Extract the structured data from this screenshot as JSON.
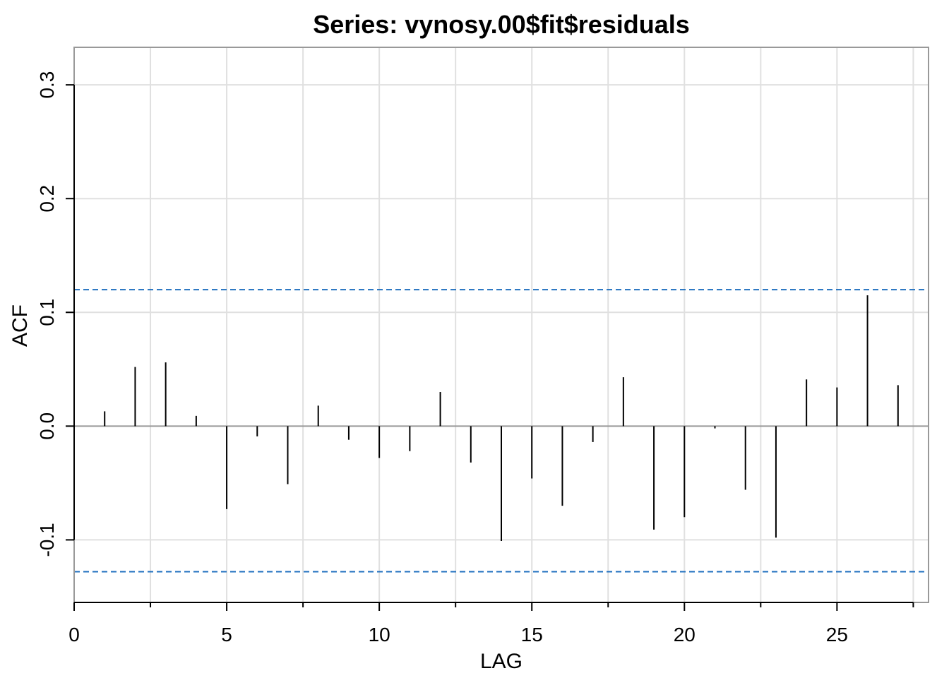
{
  "chart_data": {
    "type": "bar",
    "title": "Series:  vynosy.00$fit$residuals",
    "xlabel": "LAG",
    "ylabel": "ACF",
    "xlim": [
      0,
      28
    ],
    "ylim": [
      -0.155,
      0.333
    ],
    "x_ticks": [
      0,
      5,
      10,
      15,
      20,
      25
    ],
    "x_tick_labels": [
      "0",
      "5",
      "10",
      "15",
      "20",
      "25"
    ],
    "x_minor_ticks": [
      2.5,
      7.5,
      12.5,
      17.5,
      22.5,
      27.5
    ],
    "y_ticks": [
      -0.1,
      0.0,
      0.1,
      0.2,
      0.3
    ],
    "y_tick_labels": [
      "-0.1",
      "0.0",
      "0.1",
      "0.2",
      "0.3"
    ],
    "grid": true,
    "lags": [
      1,
      2,
      3,
      4,
      5,
      6,
      7,
      8,
      9,
      10,
      11,
      12,
      13,
      14,
      15,
      16,
      17,
      18,
      19,
      20,
      21,
      22,
      23,
      24,
      25,
      26,
      27
    ],
    "values": [
      0.013,
      0.052,
      0.056,
      0.009,
      -0.073,
      -0.009,
      -0.051,
      0.018,
      -0.012,
      -0.028,
      -0.022,
      0.03,
      -0.032,
      -0.101,
      -0.046,
      -0.07,
      -0.014,
      0.043,
      -0.091,
      -0.08,
      -0.002,
      -0.056,
      -0.098,
      0.041,
      0.034,
      0.115,
      0.036
    ],
    "confidence_bounds": [
      0.12,
      -0.128
    ],
    "colors": {
      "bars": "#000000",
      "confidence": "#1f6fbf",
      "grid": "#e0e0e0",
      "zero_line": "#999999",
      "frame": "#999999"
    }
  }
}
